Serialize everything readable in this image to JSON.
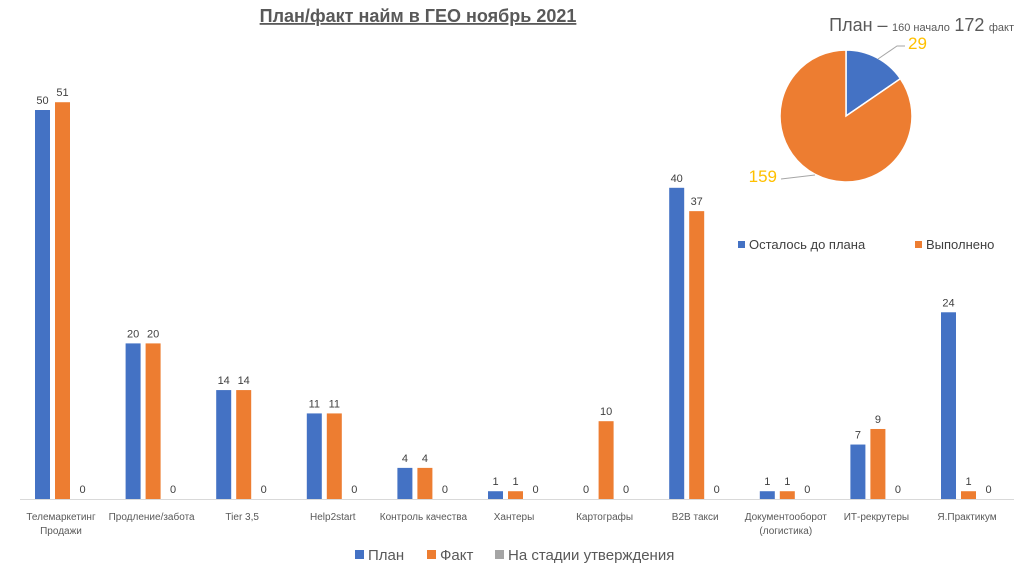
{
  "chart_data": [
    {
      "type": "bar",
      "title": "План/факт найм в ГЕО ноябрь 2021",
      "categories": [
        "Телемаркетинг Продажи",
        "Продление/забота",
        "Tier 3,5",
        "Help2start",
        "Контроль качества",
        "Хантеры",
        "Картографы",
        "B2B такси",
        "Документооборот (логистика)",
        "ИТ-рекрутеры",
        "Я.Практикум"
      ],
      "series": [
        {
          "name": "План",
          "color": "#4472C4",
          "values": [
            50,
            20,
            14,
            11,
            4,
            1,
            0,
            40,
            1,
            7,
            24
          ]
        },
        {
          "name": "Факт",
          "color": "#ED7D31",
          "values": [
            51,
            20,
            14,
            11,
            4,
            1,
            10,
            37,
            1,
            9,
            1
          ]
        },
        {
          "name": "На стадии утверждения",
          "color": "#A5A5A5",
          "values": [
            0,
            0,
            0,
            0,
            0,
            0,
            0,
            0,
            0,
            0,
            0
          ]
        }
      ],
      "ylim": [
        0,
        52
      ],
      "grid": false,
      "legend": "bottom"
    },
    {
      "type": "pie",
      "title_parts": [
        "План –",
        "160 начало",
        "172",
        "факт"
      ],
      "labels": [
        "Осталось до плана",
        "Выполнено"
      ],
      "values": [
        29,
        159
      ],
      "colors": [
        "#4472C4",
        "#ED7D31"
      ],
      "label_color": "#FFC000",
      "legend": "bottom"
    }
  ]
}
